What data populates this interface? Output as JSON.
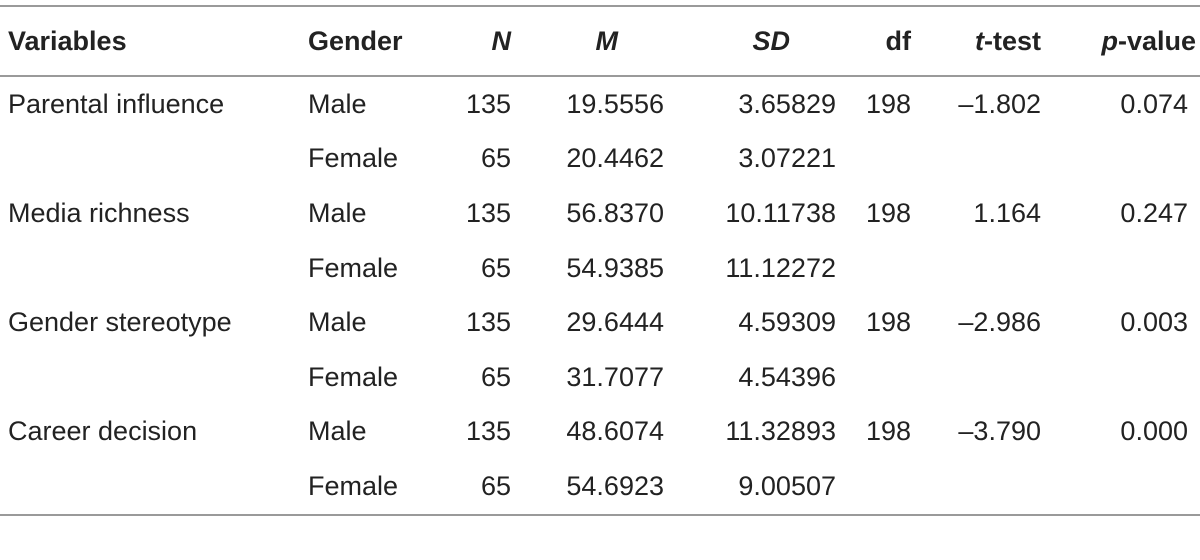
{
  "table": {
    "header": [
      "Variables",
      "Gender",
      "N",
      "M",
      "SD",
      "df",
      "t-test",
      "p-value"
    ],
    "rows": [
      {
        "variable": "Parental influence",
        "groups": [
          {
            "gender": "Male",
            "n": "135",
            "m": "19.5556",
            "sd": "3.65829"
          },
          {
            "gender": "Female",
            "n": "65",
            "m": "20.4462",
            "sd": "3.07221"
          }
        ],
        "df": "198",
        "t": "–1.802",
        "p": "0.074"
      },
      {
        "variable": "Media richness",
        "groups": [
          {
            "gender": "Male",
            "n": "135",
            "m": "56.8370",
            "sd": "10.11738"
          },
          {
            "gender": "Female",
            "n": "65",
            "m": "54.9385",
            "sd": "11.12272"
          }
        ],
        "df": "198",
        "t": "1.164",
        "p": "0.247"
      },
      {
        "variable": "Gender stereotype",
        "groups": [
          {
            "gender": "Male",
            "n": "135",
            "m": "29.6444",
            "sd": "4.59309"
          },
          {
            "gender": "Female",
            "n": "65",
            "m": "31.7077",
            "sd": "4.54396"
          }
        ],
        "df": "198",
        "t": "–2.986",
        "p": "0.003"
      },
      {
        "variable": "Career decision",
        "groups": [
          {
            "gender": "Male",
            "n": "135",
            "m": "48.6074",
            "sd": "11.32893"
          },
          {
            "gender": "Female",
            "n": "65",
            "m": "54.6923",
            "sd": "9.00507"
          }
        ],
        "df": "198",
        "t": "–3.790",
        "p": "0.000"
      }
    ]
  }
}
